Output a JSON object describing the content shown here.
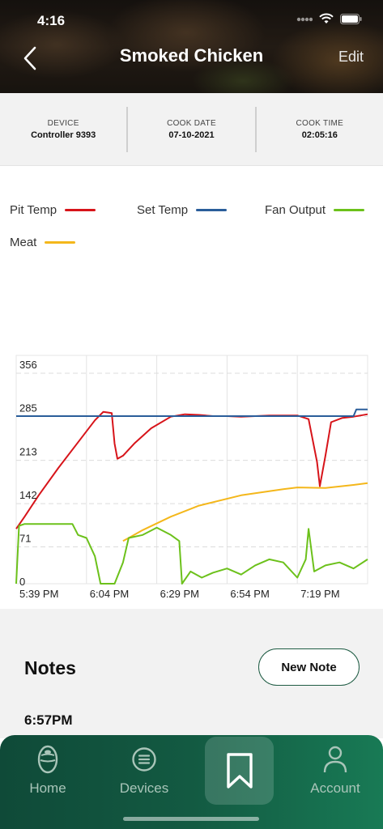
{
  "status_bar": {
    "time": "4:16"
  },
  "header": {
    "title": "Smoked Chicken",
    "edit_label": "Edit"
  },
  "info": [
    {
      "label": "DEVICE",
      "value": "Controller 9393"
    },
    {
      "label": "COOK DATE",
      "value": "07-10-2021"
    },
    {
      "label": "COOK TIME",
      "value": "02:05:16"
    }
  ],
  "legend": [
    {
      "name": "Pit Temp",
      "color": "#d7141a"
    },
    {
      "name": "Set Temp",
      "color": "#2a5d9a"
    },
    {
      "name": "Fan Output",
      "color": "#6cc11b"
    },
    {
      "name": "Meat",
      "color": "#f4b71b"
    }
  ],
  "chart_data": {
    "type": "line",
    "xlabel": "",
    "ylabel": "",
    "ylim": [
      0,
      356
    ],
    "y_ticks": [
      "356",
      "285",
      "213",
      "142",
      "71",
      "0"
    ],
    "x_tick_labels": [
      "5:39 PM",
      "6:04 PM",
      "6:29 PM",
      "6:54 PM",
      "7:19 PM"
    ],
    "x_unit": "minutes after 5:39 PM",
    "xlim": [
      0,
      125
    ],
    "grid": true,
    "series": [
      {
        "name": "Pit Temp",
        "color": "#d7141a",
        "x": [
          0,
          3,
          8,
          15,
          22,
          28,
          31,
          34,
          35,
          36,
          38,
          42,
          48,
          55,
          60,
          65,
          70,
          75,
          80,
          90,
          100,
          104,
          107,
          108,
          110,
          112,
          116,
          120,
          125
        ],
        "y": [
          90,
          110,
          145,
          190,
          232,
          268,
          282,
          280,
          230,
          205,
          210,
          230,
          255,
          274,
          278,
          277,
          275,
          275,
          274,
          276,
          276,
          270,
          200,
          160,
          210,
          265,
          272,
          274,
          278
        ]
      },
      {
        "name": "Set Temp",
        "color": "#2a5d9a",
        "x": [
          0,
          120,
          121,
          125
        ],
        "y": [
          275,
          275,
          286,
          286
        ]
      },
      {
        "name": "Meat",
        "color": "#f4b71b",
        "x": [
          38,
          40,
          45,
          55,
          65,
          80,
          95,
          100,
          110,
          120,
          125
        ],
        "y": [
          70,
          75,
          88,
          110,
          128,
          145,
          155,
          158,
          157,
          162,
          165
        ]
      },
      {
        "name": "Fan Output",
        "color": "#6cc11b",
        "x": [
          0,
          1,
          3,
          20,
          22,
          25,
          28,
          30,
          35,
          38,
          40,
          45,
          50,
          55,
          58,
          59,
          62,
          66,
          70,
          75,
          80,
          85,
          90,
          95,
          100,
          103,
          104,
          106,
          110,
          115,
          120,
          125
        ],
        "y": [
          0,
          95,
          98,
          98,
          80,
          75,
          45,
          0,
          0,
          35,
          75,
          80,
          92,
          80,
          70,
          0,
          20,
          10,
          18,
          25,
          15,
          30,
          40,
          35,
          10,
          40,
          90,
          20,
          30,
          35,
          25,
          40
        ]
      }
    ]
  },
  "notes": {
    "title": "Notes",
    "new_note_label": "New Note",
    "first_note_time": "6:57PM"
  },
  "tabs": [
    {
      "label": "Home",
      "icon": "egg-grill-icon"
    },
    {
      "label": "Devices",
      "icon": "list-circle-icon"
    },
    {
      "label": "",
      "icon": "bookmark-icon"
    },
    {
      "label": "Account",
      "icon": "user-icon"
    }
  ]
}
